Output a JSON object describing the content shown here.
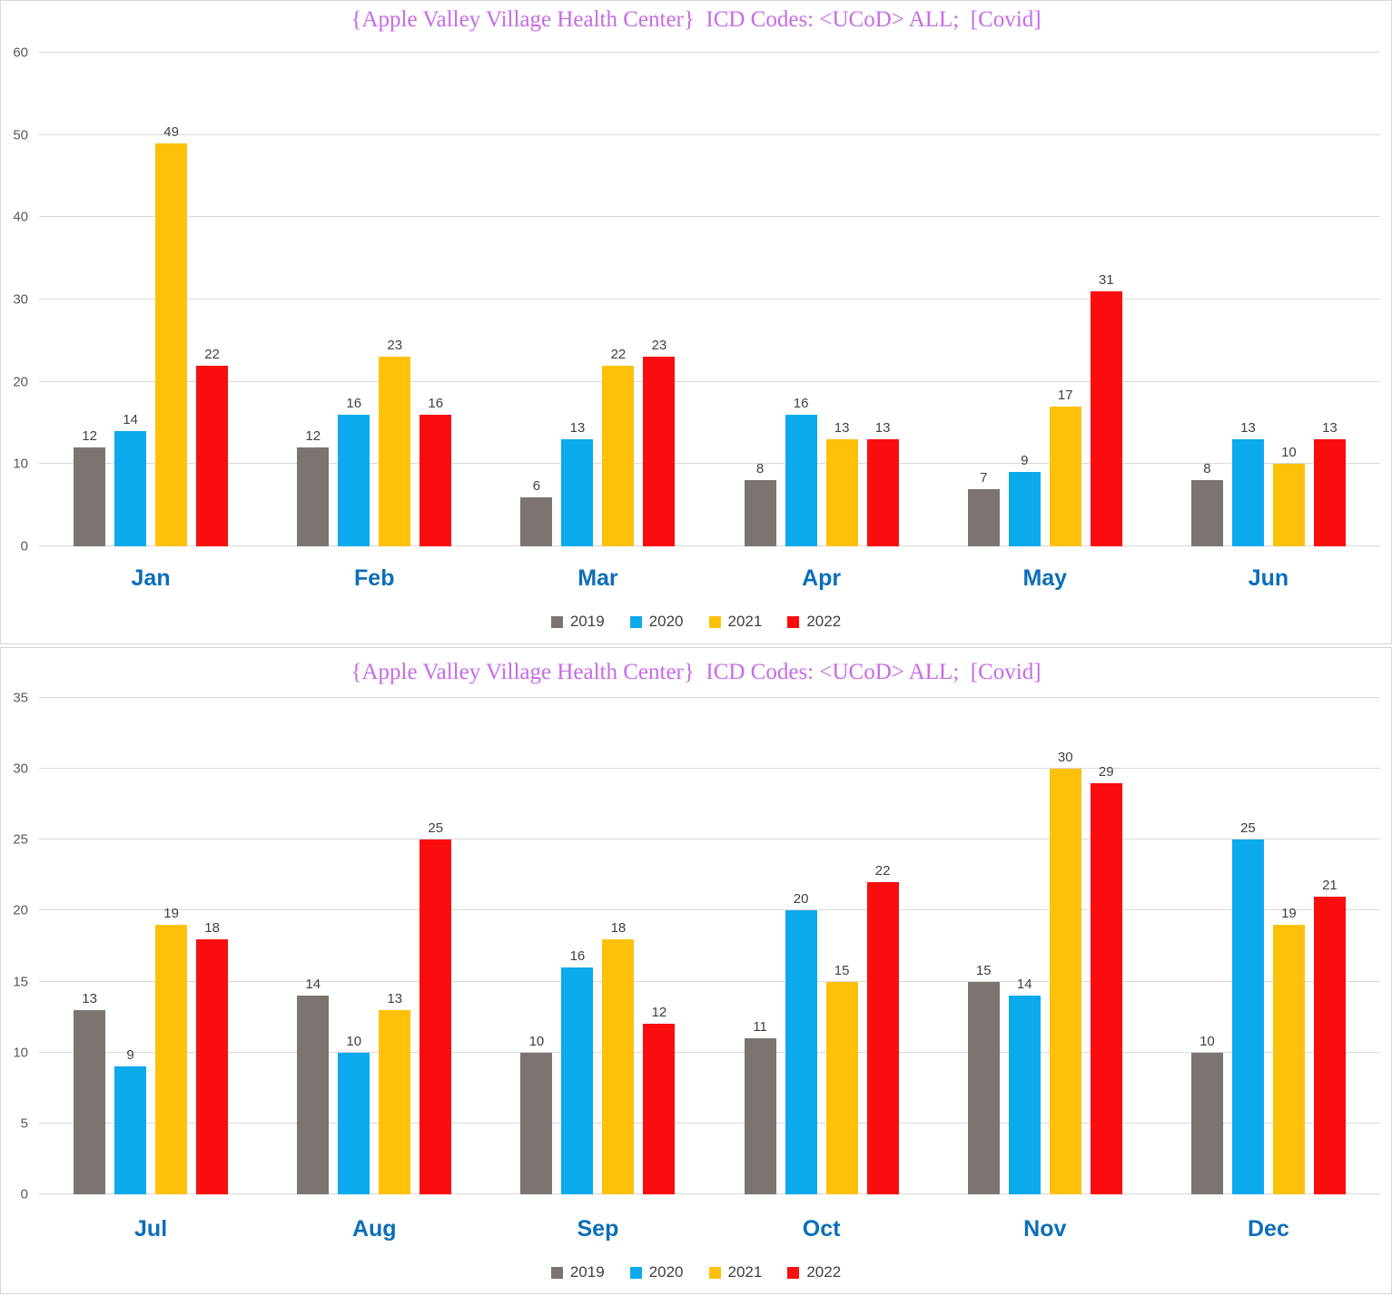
{
  "chart_data": [
    {
      "type": "bar",
      "title": "{Apple Valley Village Health Center}  ICD Codes: <UCoD> ALL;  [Covid]",
      "categories": [
        "Jan",
        "Feb",
        "Mar",
        "Apr",
        "May",
        "Jun"
      ],
      "series": [
        {
          "name": "2019",
          "color": "#7b7471",
          "values": [
            12,
            12,
            6,
            8,
            7,
            8
          ]
        },
        {
          "name": "2020",
          "color": "#0baaec",
          "values": [
            14,
            16,
            13,
            16,
            9,
            13
          ]
        },
        {
          "name": "2021",
          "color": "#ffc00a",
          "values": [
            49,
            23,
            22,
            13,
            17,
            10
          ]
        },
        {
          "name": "2022",
          "color": "#f90d0e",
          "values": [
            22,
            16,
            23,
            13,
            31,
            13
          ]
        }
      ],
      "ylim": [
        0,
        60
      ],
      "yticks": [
        0,
        10,
        20,
        30,
        40,
        50,
        60
      ],
      "grid": true,
      "legend_position": "bottom"
    },
    {
      "type": "bar",
      "title": "{Apple Valley Village Health Center}  ICD Codes: <UCoD> ALL;  [Covid]",
      "categories": [
        "Jul",
        "Aug",
        "Sep",
        "Oct",
        "Nov",
        "Dec"
      ],
      "series": [
        {
          "name": "2019",
          "color": "#7b7471",
          "values": [
            13,
            14,
            10,
            11,
            15,
            10
          ]
        },
        {
          "name": "2020",
          "color": "#0baaec",
          "values": [
            9,
            10,
            16,
            20,
            14,
            25
          ]
        },
        {
          "name": "2021",
          "color": "#ffc00a",
          "values": [
            19,
            13,
            18,
            15,
            30,
            19
          ]
        },
        {
          "name": "2022",
          "color": "#f90d0e",
          "values": [
            18,
            25,
            12,
            22,
            29,
            21
          ]
        }
      ],
      "ylim": [
        0,
        35
      ],
      "yticks": [
        0,
        5,
        10,
        15,
        20,
        25,
        30,
        35
      ],
      "grid": true,
      "legend_position": "bottom"
    }
  ],
  "styles": {
    "title_color": "#c76ae8",
    "month_label_color": "#0d6eb8",
    "tick_label_color": "#595959",
    "data_label_color": "#404040",
    "gridline_color": "#d9d9d9"
  }
}
